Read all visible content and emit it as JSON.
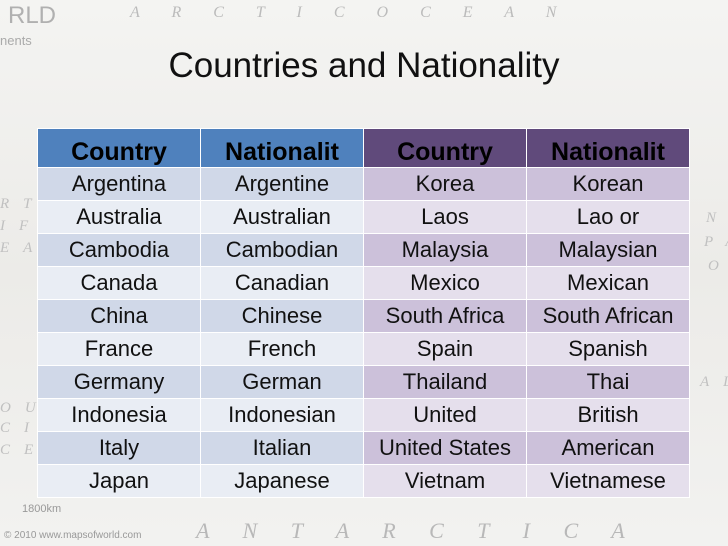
{
  "title": "Countries and Nationality",
  "table": {
    "header": [
      "Country",
      "Nationalit",
      "Country",
      "Nationalit"
    ],
    "rows": [
      [
        "Argentina",
        "Argentine",
        "Korea",
        "Korean"
      ],
      [
        "Australia",
        "Australian",
        "Laos",
        "Lao or"
      ],
      [
        "Cambodia",
        "Cambodian",
        "Malaysia",
        "Malaysian"
      ],
      [
        "Canada",
        "Canadian",
        "Mexico",
        "Mexican"
      ],
      [
        "China",
        "Chinese",
        "South Africa",
        "South African"
      ],
      [
        "France",
        "French",
        "Spain",
        "Spanish"
      ],
      [
        "Germany",
        "German",
        "Thailand",
        "Thai"
      ],
      [
        "Indonesia",
        "Indonesian",
        "United",
        "British"
      ],
      [
        "Italy",
        "Italian",
        "United States",
        "American"
      ],
      [
        "Japan",
        "Japanese",
        "Vietnam",
        "Vietnamese"
      ]
    ]
  },
  "background_labels": [
    "RLD",
    "nents",
    "A R C T I C   O C E A N",
    "RTH",
    "IFIC",
    "EAN",
    "OUTH",
    "CIFI",
    "CEA",
    "NO",
    "PA",
    "O",
    "ALIA",
    "1800km",
    "© 2010 www.mapsofworld.com",
    "A N T A R C T I C A"
  ]
}
